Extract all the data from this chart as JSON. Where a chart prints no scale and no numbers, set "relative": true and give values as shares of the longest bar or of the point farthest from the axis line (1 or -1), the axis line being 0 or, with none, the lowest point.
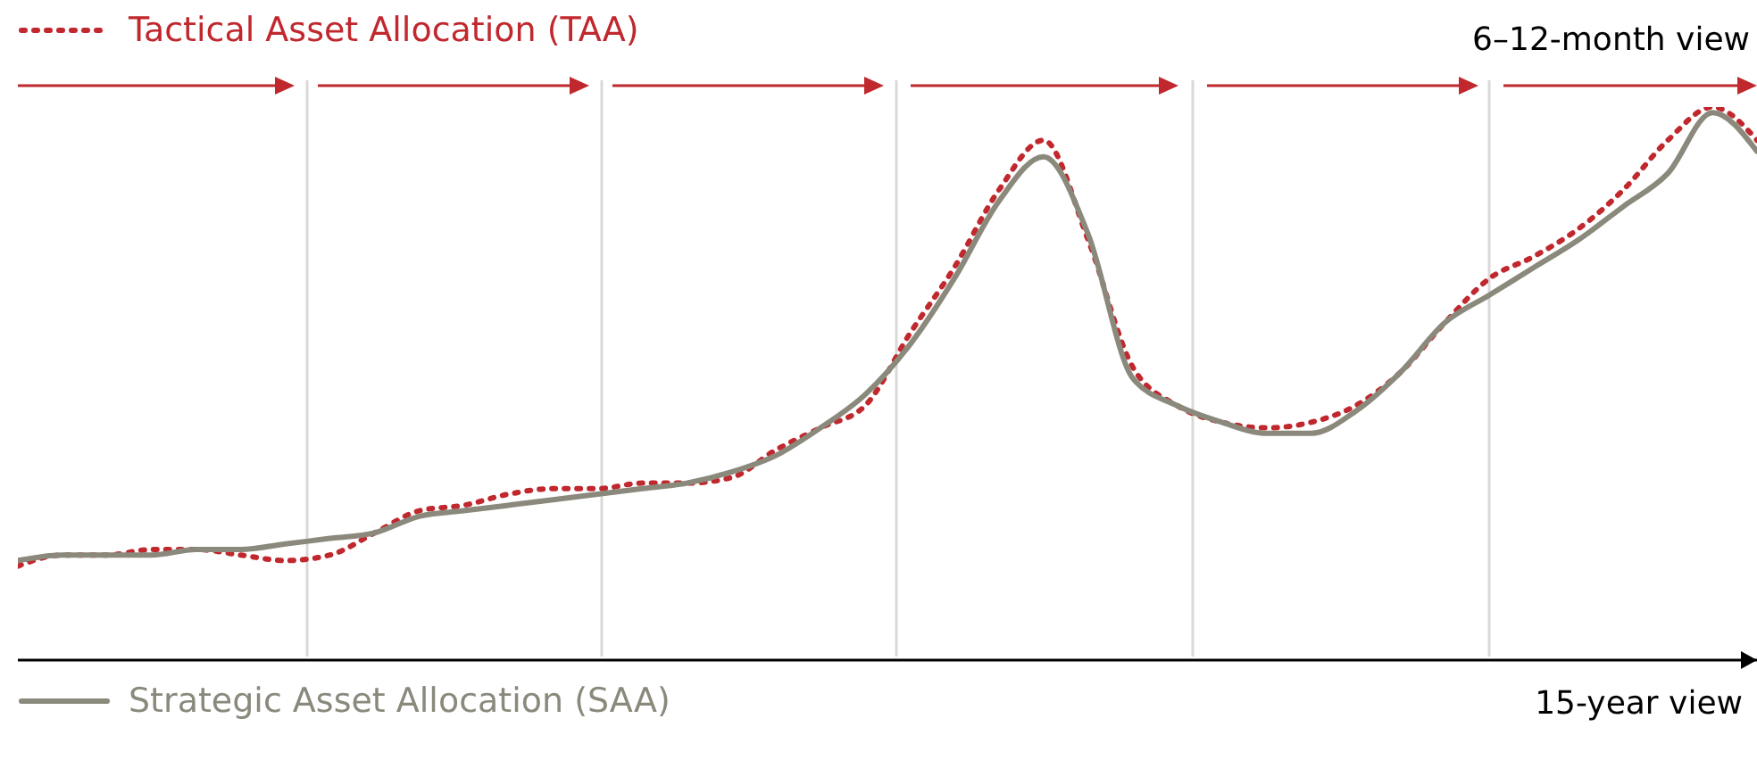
{
  "chart_data": {
    "type": "line",
    "relative": true,
    "categories": [
      null,
      null,
      null,
      null,
      null,
      null,
      null,
      null,
      null,
      null,
      null,
      null,
      null,
      null,
      null,
      null,
      null,
      null,
      null,
      null,
      null,
      null,
      null,
      null,
      null,
      null,
      null,
      null,
      null,
      null,
      null,
      null,
      null,
      null,
      null,
      null,
      null,
      null,
      null,
      null
    ],
    "series": [
      {
        "name": "Tactical Asset Allocation (TAA)",
        "color": "#c0282e",
        "line_style": "dotted",
        "values": [
          0.17,
          0.19,
          0.19,
          0.2,
          0.2,
          0.19,
          0.18,
          0.19,
          0.23,
          0.27,
          0.28,
          0.3,
          0.31,
          0.31,
          0.32,
          0.32,
          0.33,
          0.38,
          0.42,
          0.46,
          0.59,
          0.71,
          0.85,
          0.94,
          0.76,
          0.53,
          0.46,
          0.43,
          0.42,
          0.43,
          0.46,
          0.52,
          0.61,
          0.69,
          0.73,
          0.78,
          0.85,
          0.94,
          1,
          0.94
        ]
      },
      {
        "name": "Strategic Asset Allocation (SAA)",
        "color": "#8a897c",
        "line_style": "solid",
        "values": [
          0.18,
          0.19,
          0.19,
          0.19,
          0.2,
          0.2,
          0.21,
          0.22,
          0.23,
          0.26,
          0.27,
          0.28,
          0.29,
          0.3,
          0.31,
          0.32,
          0.34,
          0.37,
          0.42,
          0.48,
          0.57,
          0.69,
          0.83,
          0.91,
          0.77,
          0.51,
          0.46,
          0.43,
          0.41,
          0.41,
          0.45,
          0.52,
          0.61,
          0.66,
          0.71,
          0.76,
          0.82,
          0.88,
          0.99,
          0.92
        ]
      }
    ],
    "annotations": [
      "6–12-month view",
      "15-year view"
    ],
    "legend": "left",
    "marker": "none"
  }
}
